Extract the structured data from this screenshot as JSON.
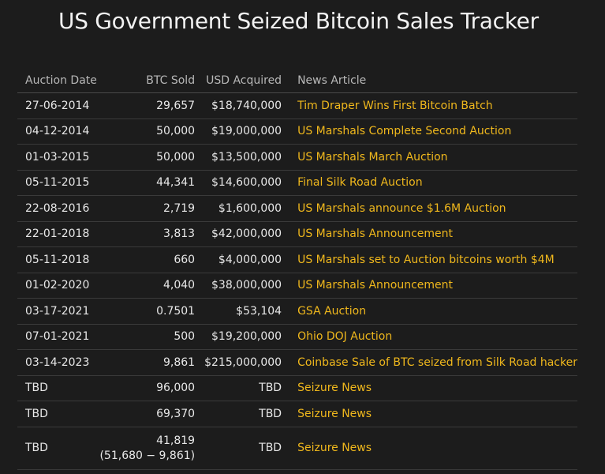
{
  "title": "US Government Seized Bitcoin Sales Tracker",
  "colors": {
    "background": "#1c1c1c",
    "link": "#f0b81c",
    "text": "#e8e8e8"
  },
  "columns": {
    "date": "Auction Date",
    "btc": "BTC Sold",
    "usd": "USD Acquired",
    "news": "News Article"
  },
  "rows": [
    {
      "date": "27-06-2014",
      "btc": "29,657",
      "usd": "$18,740,000",
      "news": "Tim Draper Wins First Bitcoin Batch"
    },
    {
      "date": "04-12-2014",
      "btc": "50,000",
      "usd": "$19,000,000",
      "news": "US Marshals Complete Second Auction"
    },
    {
      "date": "01-03-2015",
      "btc": "50,000",
      "usd": "$13,500,000",
      "news": "US Marshals March Auction"
    },
    {
      "date": "05-11-2015",
      "btc": "44,341",
      "usd": "$14,600,000",
      "news": "Final Silk Road Auction"
    },
    {
      "date": "22-08-2016",
      "btc": "2,719",
      "usd": "$1,600,000",
      "news": "US Marshals announce $1.6M Auction"
    },
    {
      "date": "22-01-2018",
      "btc": "3,813",
      "usd": "$42,000,000",
      "news": "US Marshals Announcement"
    },
    {
      "date": "05-11-2018",
      "btc": "660",
      "usd": "$4,000,000",
      "news": "US Marshals set to Auction bitcoins worth $4M"
    },
    {
      "date": "01-02-2020",
      "btc": "4,040",
      "usd": "$38,000,000",
      "news": "US Marshals Announcement"
    },
    {
      "date": "03-17-2021",
      "btc": "0.7501",
      "usd": "$53,104",
      "news": "GSA Auction"
    },
    {
      "date": "07-01-2021",
      "btc": "500",
      "usd": "$19,200,000",
      "news": "Ohio DOJ Auction"
    },
    {
      "date": "03-14-2023",
      "btc": "9,861",
      "usd": "$215,000,000",
      "news": "Coinbase Sale of BTC seized from Silk Road hacker"
    },
    {
      "date": "TBD",
      "btc": "96,000",
      "usd": "TBD",
      "news": "Seizure News"
    },
    {
      "date": "TBD",
      "btc": "69,370",
      "usd": "TBD",
      "news": "Seizure News"
    },
    {
      "date": "TBD",
      "btc": "41,819",
      "btc_note": "(51,680 − 9,861)",
      "usd": "TBD",
      "news": "Seizure News"
    }
  ]
}
